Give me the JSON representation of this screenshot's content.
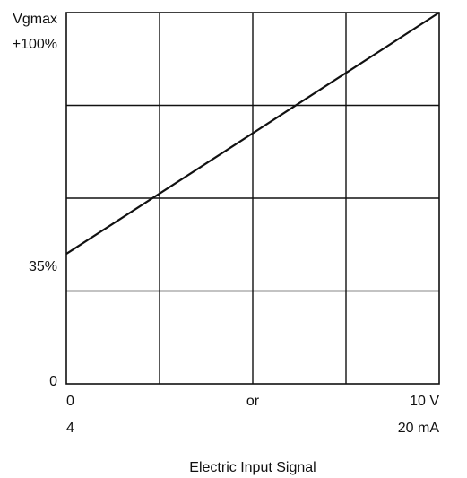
{
  "chart_data": {
    "type": "line",
    "y_top_label_line1": "Vgmax",
    "y_top_label_line2": "+100%",
    "y_mid_label": "35%",
    "y_bottom_label": "0",
    "x_left_label_line1": "0",
    "x_left_label_line2": "4",
    "x_mid_label": "or",
    "x_right_label_line1": "10 V",
    "x_right_label_line2": "20 mA",
    "xlabel": "Electric Input Signal",
    "xlim": [
      0,
      100
    ],
    "ylim": [
      0,
      100
    ],
    "grid": true,
    "x_gridlines": [
      25,
      50,
      75
    ],
    "y_gridlines": [
      25,
      50,
      75
    ],
    "series": [
      {
        "x": [
          0,
          100
        ],
        "y": [
          35,
          100
        ]
      }
    ],
    "line_color": "#111111",
    "grid_color": "#111111"
  }
}
